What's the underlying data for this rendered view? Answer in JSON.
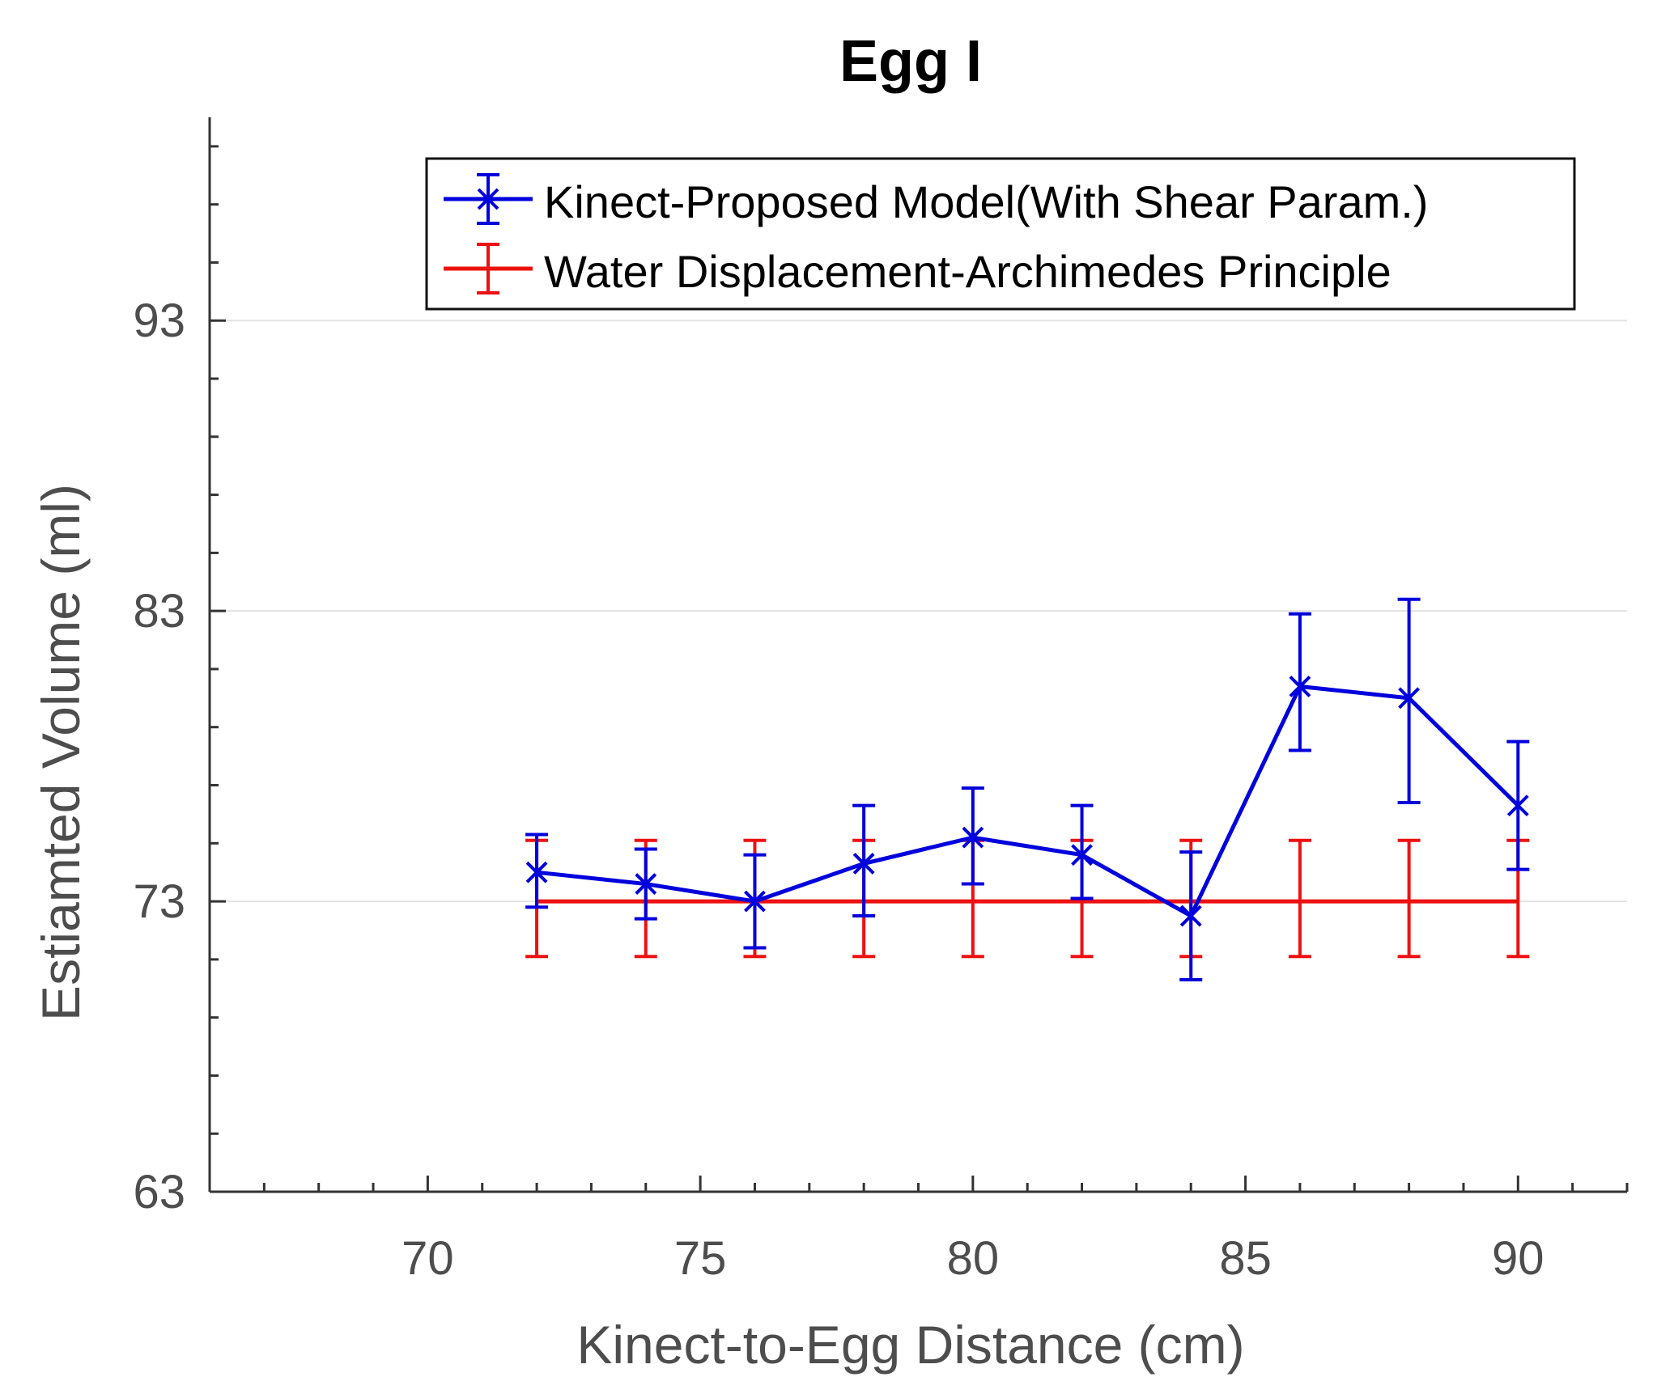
{
  "chart_data": {
    "type": "line",
    "title": "Egg I",
    "xlabel": "Kinect-to-Egg Distance (cm)",
    "ylabel": "Estiamted Volume (ml)",
    "xlim": [
      66,
      92
    ],
    "ylim": [
      63,
      100
    ],
    "xticks": [
      70,
      75,
      80,
      85,
      90
    ],
    "xtick_labels": [
      "70",
      "75",
      "80",
      "85",
      "90"
    ],
    "yticks": [
      63,
      73,
      83,
      93
    ],
    "ytick_labels": [
      "63",
      "73",
      "83",
      "93"
    ],
    "grid": "horizontal",
    "legend_position": "top-right",
    "series": [
      {
        "name": "Kinect-Proposed Model(With Shear Param.)",
        "color": "#0000dd",
        "marker": "x",
        "x": [
          72,
          74,
          76,
          78,
          80,
          82,
          84,
          86,
          88,
          90
        ],
        "y": [
          74.0,
          73.6,
          73.0,
          74.3,
          75.2,
          74.6,
          72.5,
          80.4,
          80.0,
          76.3
        ],
        "err_low": [
          1.2,
          1.2,
          1.6,
          1.8,
          1.6,
          1.5,
          2.2,
          2.2,
          3.6,
          2.2
        ],
        "err_high": [
          1.3,
          1.2,
          1.6,
          2.0,
          1.7,
          1.7,
          2.2,
          2.5,
          3.4,
          2.2
        ]
      },
      {
        "name": "Water Displacement-Archimedes Principle",
        "color": "#ee1111",
        "marker": "none",
        "x": [
          72,
          74,
          76,
          78,
          80,
          82,
          84,
          86,
          88,
          90
        ],
        "y": [
          73.0,
          73.0,
          73.0,
          73.0,
          73.0,
          73.0,
          73.0,
          73.0,
          73.0,
          73.0
        ],
        "err_low": [
          1.9,
          1.9,
          1.9,
          1.9,
          1.9,
          1.9,
          1.9,
          1.9,
          1.9,
          1.9
        ],
        "err_high": [
          2.1,
          2.1,
          2.1,
          2.1,
          2.1,
          2.1,
          2.1,
          2.1,
          2.1,
          2.1
        ]
      }
    ]
  }
}
